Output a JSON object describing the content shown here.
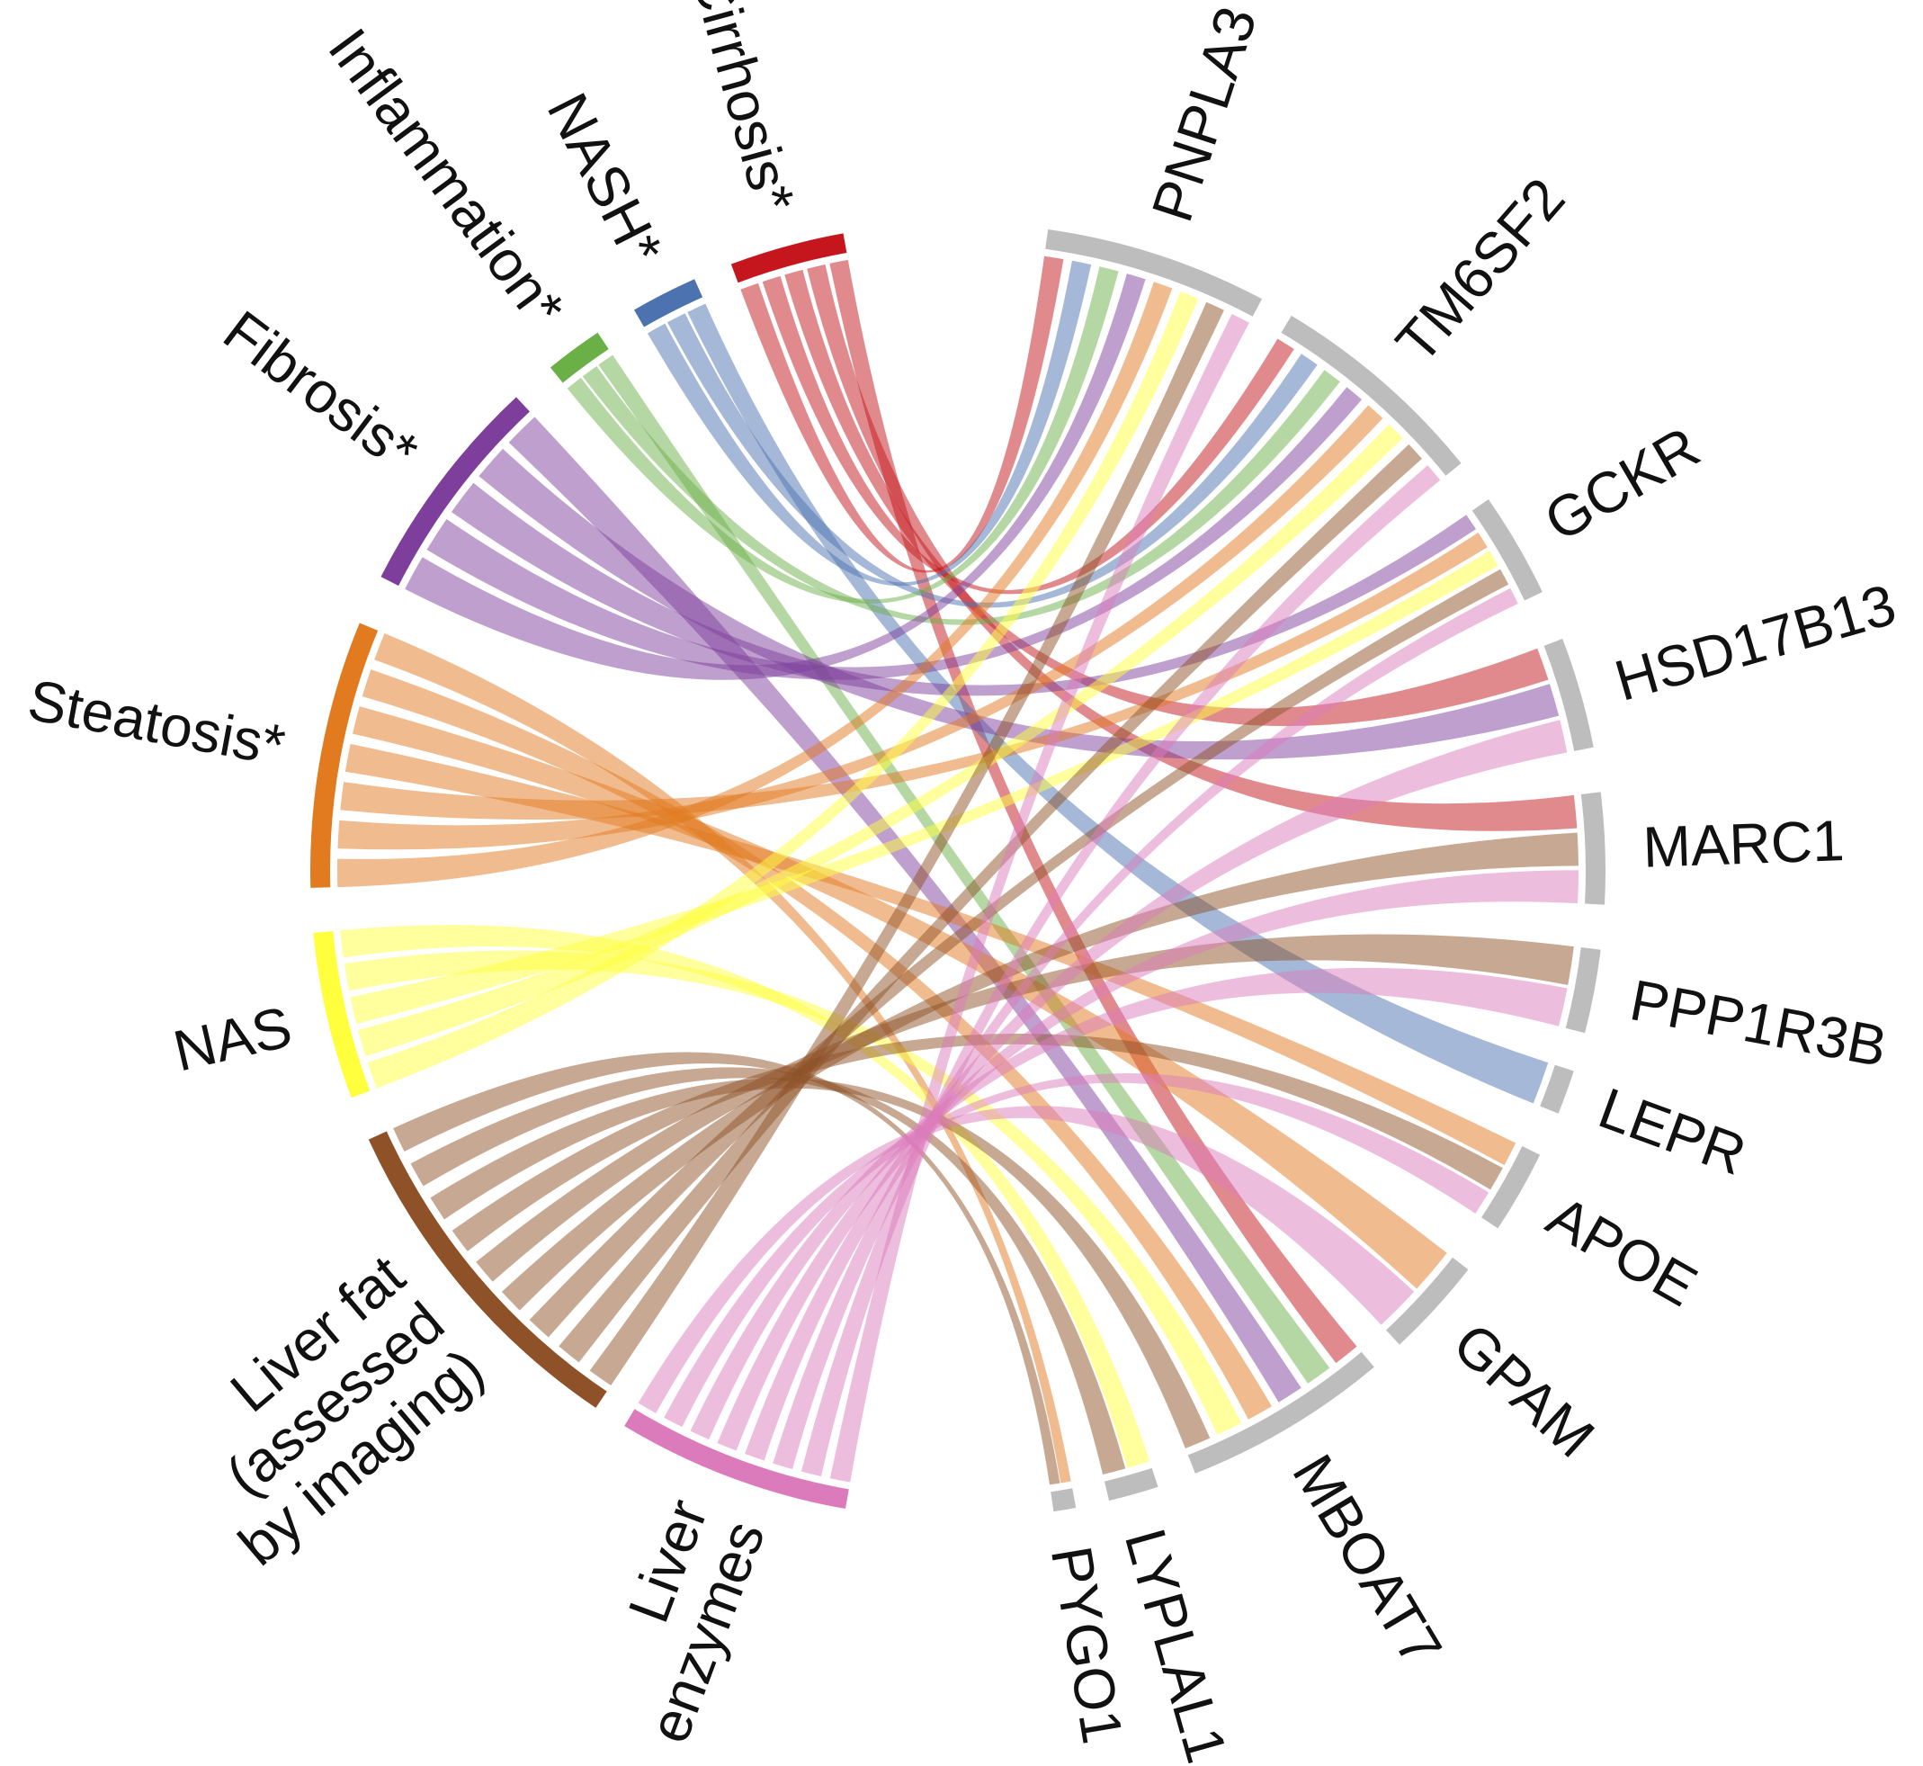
{
  "chart_data": {
    "type": "chord",
    "title": "",
    "groups": [
      {
        "id": "cirrhosis",
        "lines": [
          "Cirrhosis*"
        ],
        "color": "#C4161C",
        "side": "trait"
      },
      {
        "id": "nash",
        "lines": [
          "NASH*"
        ],
        "color": "#4C72B0",
        "side": "trait"
      },
      {
        "id": "inflammation",
        "lines": [
          "Inflammation*"
        ],
        "color": "#6BAF47",
        "side": "trait"
      },
      {
        "id": "fibrosis",
        "lines": [
          "Fibrosis*"
        ],
        "color": "#7E3F9C",
        "side": "trait"
      },
      {
        "id": "steatosis",
        "lines": [
          "Steatosis*"
        ],
        "color": "#E27A1F",
        "side": "trait"
      },
      {
        "id": "nas",
        "lines": [
          "NAS"
        ],
        "color": "#FFFF3D",
        "side": "trait"
      },
      {
        "id": "liverfat",
        "lines": [
          "Liver fat",
          "(assessed",
          "by imaging)"
        ],
        "color": "#8E5128",
        "side": "trait"
      },
      {
        "id": "enzymes",
        "lines": [
          "Liver",
          "enzymes"
        ],
        "color": "#DC7BBC",
        "side": "trait"
      },
      {
        "id": "PNPLA3",
        "lines": [
          "PNPLA3"
        ],
        "color": "#BDBDBD",
        "side": "gene"
      },
      {
        "id": "TM6SF2",
        "lines": [
          "TM6SF2"
        ],
        "color": "#BDBDBD",
        "side": "gene"
      },
      {
        "id": "GCKR",
        "lines": [
          "GCKR"
        ],
        "color": "#BDBDBD",
        "side": "gene"
      },
      {
        "id": "HSD17B13",
        "lines": [
          "HSD17B13"
        ],
        "color": "#BDBDBD",
        "side": "gene"
      },
      {
        "id": "MARC1",
        "lines": [
          "MARC1"
        ],
        "color": "#BDBDBD",
        "side": "gene"
      },
      {
        "id": "PPP1R3B",
        "lines": [
          "PPP1R3B"
        ],
        "color": "#BDBDBD",
        "side": "gene"
      },
      {
        "id": "LEPR",
        "lines": [
          "LEPR"
        ],
        "color": "#BDBDBD",
        "side": "gene"
      },
      {
        "id": "APOE",
        "lines": [
          "APOE"
        ],
        "color": "#BDBDBD",
        "side": "gene"
      },
      {
        "id": "GPAM",
        "lines": [
          "GPAM"
        ],
        "color": "#BDBDBD",
        "side": "gene"
      },
      {
        "id": "MBOAT7",
        "lines": [
          "MBOAT7"
        ],
        "color": "#BDBDBD",
        "side": "gene"
      },
      {
        "id": "LYPLAL1",
        "lines": [
          "LYPLAL1"
        ],
        "color": "#BDBDBD",
        "side": "gene"
      },
      {
        "id": "PYGO1",
        "lines": [
          "PYGO1"
        ],
        "color": "#BDBDBD",
        "side": "gene"
      }
    ],
    "links": [
      {
        "source": "cirrhosis",
        "targets": [
          "PNPLA3",
          "TM6SF2",
          "HSD17B13",
          "MARC1",
          "MBOAT7"
        ]
      },
      {
        "source": "nash",
        "targets": [
          "PNPLA3",
          "TM6SF2",
          "LEPR"
        ]
      },
      {
        "source": "inflammation",
        "targets": [
          "PNPLA3",
          "TM6SF2",
          "MBOAT7"
        ]
      },
      {
        "source": "fibrosis",
        "targets": [
          "PNPLA3",
          "TM6SF2",
          "GCKR",
          "HSD17B13",
          "MBOAT7"
        ]
      },
      {
        "source": "steatosis",
        "targets": [
          "PNPLA3",
          "TM6SF2",
          "GCKR",
          "APOE",
          "GPAM",
          "MBOAT7",
          "PYGO1"
        ]
      },
      {
        "source": "nas",
        "targets": [
          "PNPLA3",
          "TM6SF2",
          "GCKR",
          "MBOAT7",
          "LYPLAL1"
        ]
      },
      {
        "source": "liverfat",
        "targets": [
          "PNPLA3",
          "TM6SF2",
          "GCKR",
          "MARC1",
          "PPP1R3B",
          "APOE",
          "MBOAT7",
          "LYPLAL1",
          "PYGO1"
        ]
      },
      {
        "source": "enzymes",
        "targets": [
          "PNPLA3",
          "TM6SF2",
          "GCKR",
          "HSD17B13",
          "MARC1",
          "PPP1R3B",
          "APOE",
          "GPAM"
        ]
      }
    ]
  }
}
